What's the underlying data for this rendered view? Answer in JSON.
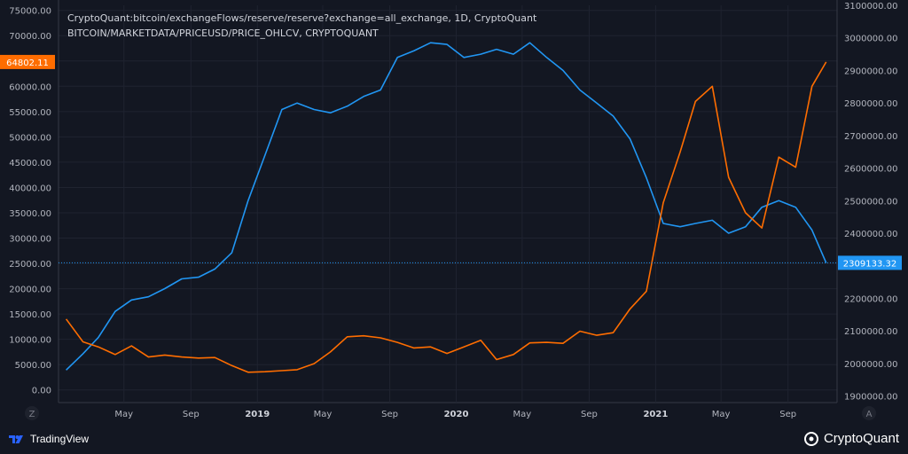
{
  "legend": {
    "line1": "CryptoQuant:bitcoin/exchangeFlows/reserve/reserve?exchange=all_exchange, 1D, CryptoQuant",
    "line2": "BITCOIN/MARKETDATA/PRICEUSD/PRICE_OHLCV, CRYPTOQUANT"
  },
  "colors": {
    "background": "#131722",
    "reserve": "#2196f3",
    "price": "#ff6d00",
    "text": "#d1d4dc",
    "grid": "#1f2330"
  },
  "footer": {
    "tradingview": "TradingView",
    "cryptoquant": "CryptoQuant"
  },
  "controls": {
    "left": "Z",
    "right": "A"
  },
  "chart_data": {
    "type": "line",
    "x_ticks": [
      "May",
      "Sep",
      "2019",
      "May",
      "Sep",
      "2020",
      "May",
      "Sep",
      "2021",
      "May",
      "Sep"
    ],
    "x": [
      "2018-01-15",
      "2018-02-15",
      "2018-03-15",
      "2018-04-15",
      "2018-05-15",
      "2018-06-15",
      "2018-07-15",
      "2018-08-15",
      "2018-09-15",
      "2018-10-15",
      "2018-11-15",
      "2018-12-15",
      "2019-01-15",
      "2019-02-15",
      "2019-03-15",
      "2019-04-15",
      "2019-05-15",
      "2019-06-15",
      "2019-07-15",
      "2019-08-15",
      "2019-09-15",
      "2019-10-15",
      "2019-11-15",
      "2019-12-15",
      "2020-01-15",
      "2020-02-15",
      "2020-03-15",
      "2020-04-15",
      "2020-05-15",
      "2020-06-15",
      "2020-07-15",
      "2020-08-15",
      "2020-09-15",
      "2020-10-15",
      "2020-11-15",
      "2020-12-15",
      "2021-01-15",
      "2021-02-15",
      "2021-03-15",
      "2021-04-15",
      "2021-05-15",
      "2021-06-15",
      "2021-07-15",
      "2021-08-15",
      "2021-09-15",
      "2021-10-15",
      "2021-11-10"
    ],
    "left_axis": {
      "ticks": [
        "75000.00",
        "70000.00",
        "65000.00",
        "60000.00",
        "55000.00",
        "50000.00",
        "45000.00",
        "40000.00",
        "35000.00",
        "30000.00",
        "25000.00",
        "20000.00",
        "15000.00",
        "10000.00",
        "5000.00",
        "0.00"
      ],
      "range": [
        -2500,
        76000
      ]
    },
    "right_axis": {
      "ticks": [
        "3100000.00",
        "3000000.00",
        "2900000.00",
        "2800000.00",
        "2700000.00",
        "2600000.00",
        "2500000.00",
        "2400000.00",
        "2300000.00",
        "2200000.00",
        "2100000.00",
        "2000000.00",
        "1900000.00"
      ],
      "range": [
        1880000,
        3100000
      ]
    },
    "series": [
      {
        "axis": "right",
        "values": [
          1980000,
          2030000,
          2080000,
          2160000,
          2195000,
          2205000,
          2230000,
          2260000,
          2265000,
          2290000,
          2340000,
          2500000,
          2640000,
          2780000,
          2800000,
          2780000,
          2770000,
          2790000,
          2820000,
          2840000,
          2940000,
          2960000,
          2985000,
          2980000,
          2940000,
          2950000,
          2965000,
          2950000,
          2985000,
          2940000,
          2900000,
          2840000,
          2800000,
          2760000,
          2690000,
          2570000,
          2430000,
          2420000,
          2430000,
          2440000,
          2400000,
          2420000,
          2480000,
          2500000,
          2480000,
          2410000,
          2309133
        ]
      },
      {
        "axis": "left",
        "values": [
          14000,
          9500,
          8500,
          7000,
          8700,
          6500,
          6900,
          6500,
          6300,
          6400,
          4800,
          3500,
          3600,
          3800,
          4000,
          5200,
          7500,
          10500,
          10700,
          10300,
          9400,
          8300,
          8500,
          7200,
          8500,
          9800,
          6000,
          7000,
          9300,
          9400,
          9200,
          11600,
          10800,
          11300,
          16000,
          19500,
          37000,
          47000,
          57000,
          60000,
          42000,
          35000,
          32000,
          46000,
          44000,
          60000,
          64802
        ]
      }
    ],
    "last_values": {
      "price": "64802.11",
      "reserve": "2309133.32"
    }
  }
}
